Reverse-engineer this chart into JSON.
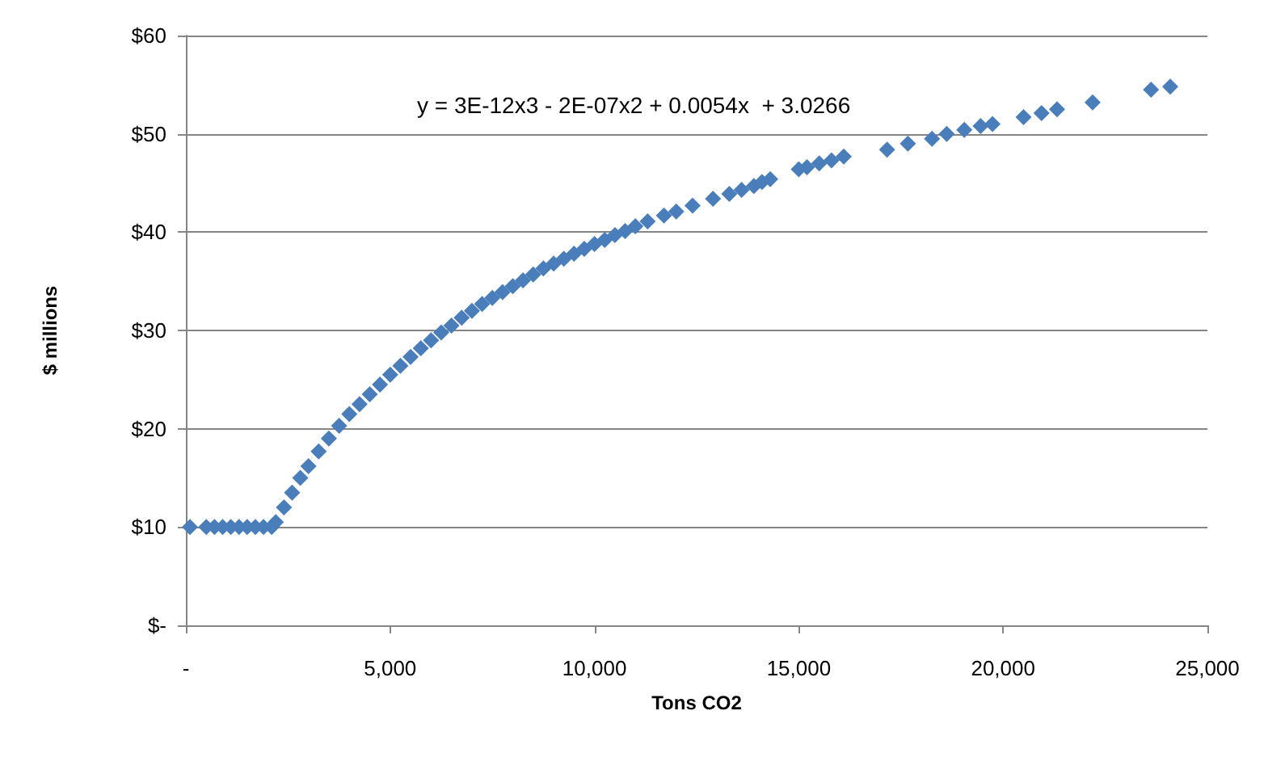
{
  "chart_data": {
    "type": "scatter",
    "xlabel": "Tons CO2",
    "ylabel": "$ millions",
    "annotations": [
      "y = 3E-12x3 - 2E-07x2 + 0.0054x  + 3.0266"
    ],
    "series": [
      {
        "color": "#4a7ebb",
        "x": [
          100,
          500,
          700,
          900,
          1100,
          1300,
          1500,
          1700,
          1900,
          2100,
          2200,
          2400,
          2600,
          2800,
          3000,
          3250,
          3500,
          3750,
          4000,
          4250,
          4500,
          4750,
          5000,
          5250,
          5500,
          5750,
          6000,
          6250,
          6500,
          6750,
          7000,
          7250,
          7500,
          7750,
          8000,
          8250,
          8500,
          8750,
          9000,
          9250,
          9500,
          9750,
          10000,
          10250,
          10500,
          10750,
          11000,
          11300,
          11700,
          12000,
          12400,
          12900,
          13300,
          13600,
          13900,
          14100,
          14300,
          15000,
          15200,
          15500,
          15800,
          16100,
          17160,
          17670,
          18260,
          18620,
          19050,
          19450,
          19740,
          20500,
          20940,
          21320,
          22190,
          23620,
          24090
        ],
        "values": [
          10,
          10,
          10,
          10,
          10,
          10,
          10,
          10,
          10,
          10,
          10.5,
          12,
          13.5,
          15,
          16.2,
          17.7,
          19,
          20.3,
          21.5,
          22.5,
          23.5,
          24.5,
          25.5,
          26.4,
          27.3,
          28.2,
          29,
          29.8,
          30.5,
          31.3,
          32,
          32.7,
          33.3,
          33.9,
          34.5,
          35.1,
          35.7,
          36.3,
          36.8,
          37.3,
          37.8,
          38.3,
          38.8,
          39.2,
          39.7,
          40.1,
          40.6,
          41.1,
          41.7,
          42.1,
          42.7,
          43.4,
          43.9,
          44.3,
          44.7,
          45.1,
          45.4,
          46.4,
          46.6,
          47,
          47.3,
          47.7,
          48.4,
          49,
          49.5,
          50,
          50.4,
          50.8,
          51,
          51.7,
          52.1,
          52.5,
          53.2,
          54.5,
          54.8
        ]
      }
    ],
    "xlim": [
      0,
      25000
    ],
    "xticks": [
      {
        "value": 0,
        "label": "-"
      },
      {
        "value": 5000,
        "label": "5,000"
      },
      {
        "value": 10000,
        "label": "10,000"
      },
      {
        "value": 15000,
        "label": "15,000"
      },
      {
        "value": 20000,
        "label": "20,000"
      },
      {
        "value": 25000,
        "label": "25,000"
      }
    ],
    "ylim": [
      0,
      60
    ],
    "yticks": [
      {
        "value": 0,
        "label": "$-"
      },
      {
        "value": 10,
        "label": "$10"
      },
      {
        "value": 20,
        "label": "$20"
      },
      {
        "value": 30,
        "label": "$30"
      },
      {
        "value": 40,
        "label": "$40"
      },
      {
        "value": 50,
        "label": "$50"
      },
      {
        "value": 60,
        "label": "$60"
      }
    ],
    "grid": "y",
    "marker": "diamond"
  }
}
